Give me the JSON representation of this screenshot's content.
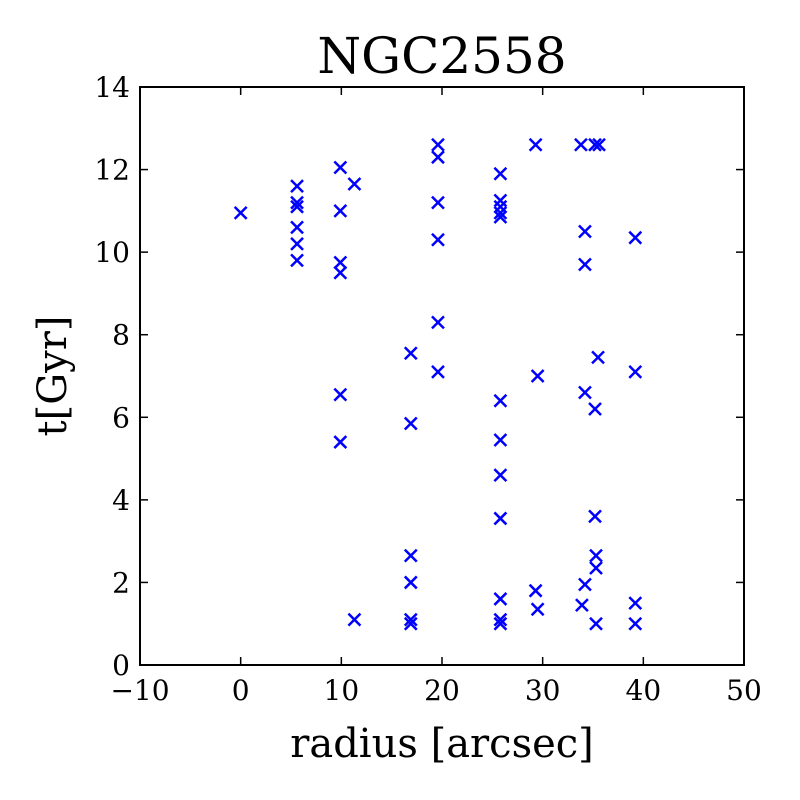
{
  "chart_data": {
    "type": "scatter",
    "title": "NGC2558",
    "xlabel": "radius [arcsec]",
    "ylabel": "t[Gyr]",
    "xlim": [
      -10,
      50
    ],
    "ylim": [
      0,
      14
    ],
    "xticks": [
      -10,
      0,
      10,
      20,
      30,
      40,
      50
    ],
    "yticks": [
      0,
      2,
      4,
      6,
      8,
      10,
      12,
      14
    ],
    "xtick_labels": [
      "−10",
      "0",
      "10",
      "20",
      "30",
      "40",
      "50"
    ],
    "ytick_labels": [
      "0",
      "2",
      "4",
      "6",
      "8",
      "10",
      "12",
      "14"
    ],
    "grid": false,
    "marker": "x",
    "color": "#0000ff",
    "series": [
      {
        "points": [
          [
            0.0,
            10.95
          ],
          [
            5.6,
            11.6
          ],
          [
            5.6,
            11.2
          ],
          [
            5.6,
            11.1
          ],
          [
            5.6,
            10.6
          ],
          [
            5.6,
            10.2
          ],
          [
            5.6,
            9.8
          ],
          [
            9.9,
            12.05
          ],
          [
            9.9,
            11.0
          ],
          [
            9.9,
            9.75
          ],
          [
            9.9,
            9.5
          ],
          [
            9.9,
            6.55
          ],
          [
            9.9,
            5.4
          ],
          [
            11.3,
            11.65
          ],
          [
            11.3,
            1.1
          ],
          [
            16.9,
            7.55
          ],
          [
            16.9,
            5.85
          ],
          [
            16.9,
            2.65
          ],
          [
            16.9,
            2.0
          ],
          [
            16.9,
            1.1
          ],
          [
            16.9,
            1.0
          ],
          [
            19.6,
            12.6
          ],
          [
            19.6,
            12.3
          ],
          [
            19.6,
            11.2
          ],
          [
            19.6,
            10.3
          ],
          [
            19.6,
            8.3
          ],
          [
            19.6,
            7.1
          ],
          [
            25.8,
            11.9
          ],
          [
            25.8,
            11.25
          ],
          [
            25.8,
            11.1
          ],
          [
            25.8,
            10.95
          ],
          [
            25.8,
            10.85
          ],
          [
            25.8,
            6.4
          ],
          [
            25.8,
            5.45
          ],
          [
            25.8,
            4.6
          ],
          [
            25.8,
            3.55
          ],
          [
            25.8,
            1.6
          ],
          [
            25.8,
            1.1
          ],
          [
            25.8,
            1.0
          ],
          [
            29.3,
            12.6
          ],
          [
            29.5,
            7.0
          ],
          [
            29.3,
            1.8
          ],
          [
            29.5,
            1.35
          ],
          [
            33.8,
            12.6
          ],
          [
            34.2,
            10.5
          ],
          [
            34.2,
            9.7
          ],
          [
            34.2,
            6.6
          ],
          [
            34.2,
            1.95
          ],
          [
            33.9,
            1.45
          ],
          [
            35.2,
            12.6
          ],
          [
            35.6,
            12.6
          ],
          [
            35.5,
            7.45
          ],
          [
            35.2,
            6.2
          ],
          [
            35.2,
            3.6
          ],
          [
            35.3,
            2.65
          ],
          [
            35.3,
            2.35
          ],
          [
            35.3,
            1.0
          ],
          [
            39.2,
            10.35
          ],
          [
            39.2,
            7.1
          ],
          [
            39.2,
            1.5
          ],
          [
            39.2,
            1.0
          ]
        ]
      }
    ]
  }
}
